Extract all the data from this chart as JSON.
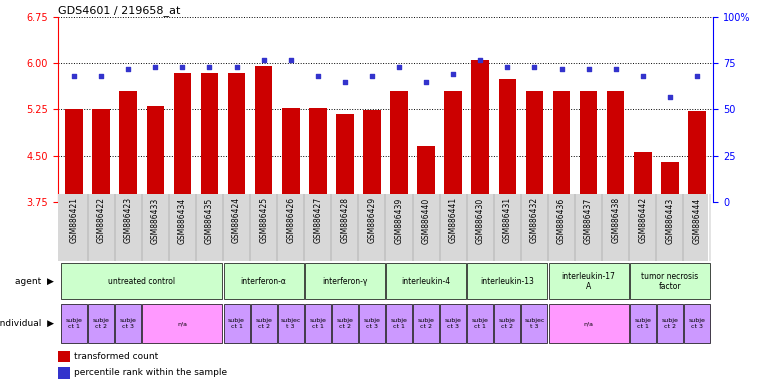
{
  "title": "GDS4601 / 219658_at",
  "samples": [
    "GSM886421",
    "GSM886422",
    "GSM886423",
    "GSM886433",
    "GSM886434",
    "GSM886435",
    "GSM886424",
    "GSM886425",
    "GSM886426",
    "GSM886427",
    "GSM886428",
    "GSM886429",
    "GSM886439",
    "GSM886440",
    "GSM886441",
    "GSM886430",
    "GSM886431",
    "GSM886432",
    "GSM886436",
    "GSM886437",
    "GSM886438",
    "GSM886442",
    "GSM886443",
    "GSM886444"
  ],
  "bar_values": [
    5.25,
    5.25,
    5.55,
    5.3,
    5.85,
    5.85,
    5.85,
    5.95,
    5.27,
    5.27,
    5.18,
    5.24,
    5.55,
    4.65,
    5.55,
    6.05,
    5.75,
    5.55,
    5.55,
    5.55,
    5.55,
    4.55,
    4.4,
    5.22
  ],
  "dot_values": [
    68,
    68,
    72,
    73,
    73,
    73,
    73,
    77,
    77,
    68,
    65,
    68,
    73,
    65,
    69,
    77,
    73,
    73,
    72,
    72,
    72,
    68,
    57,
    68
  ],
  "ylim_left": [
    3.75,
    6.75
  ],
  "ylim_right": [
    0,
    100
  ],
  "yticks_left": [
    3.75,
    4.5,
    5.25,
    6.0,
    6.75
  ],
  "yticks_right": [
    0,
    25,
    50,
    75,
    100
  ],
  "bar_color": "#cc0000",
  "dot_color": "#3333cc",
  "bar_width": 0.65,
  "agent_groups": [
    {
      "label": "untreated control",
      "start": 0,
      "end": 5,
      "color": "#ccffcc"
    },
    {
      "label": "interferon-α",
      "start": 6,
      "end": 8,
      "color": "#ccffcc"
    },
    {
      "label": "interferon-γ",
      "start": 9,
      "end": 11,
      "color": "#ccffcc"
    },
    {
      "label": "interleukin-4",
      "start": 12,
      "end": 14,
      "color": "#ccffcc"
    },
    {
      "label": "interleukin-13",
      "start": 15,
      "end": 17,
      "color": "#ccffcc"
    },
    {
      "label": "interleukin-17\nA",
      "start": 18,
      "end": 20,
      "color": "#ccffcc"
    },
    {
      "label": "tumor necrosis\nfactor",
      "start": 21,
      "end": 23,
      "color": "#ccffcc"
    }
  ],
  "individual_groups": [
    {
      "label": "subje\nct 1",
      "start": 0,
      "end": 0,
      "color": "#cc99ff"
    },
    {
      "label": "subje\nct 2",
      "start": 1,
      "end": 1,
      "color": "#cc99ff"
    },
    {
      "label": "subje\nct 3",
      "start": 2,
      "end": 2,
      "color": "#cc99ff"
    },
    {
      "label": "n/a",
      "start": 3,
      "end": 5,
      "color": "#ff99ff"
    },
    {
      "label": "subje\nct 1",
      "start": 6,
      "end": 6,
      "color": "#cc99ff"
    },
    {
      "label": "subje\nct 2",
      "start": 7,
      "end": 7,
      "color": "#cc99ff"
    },
    {
      "label": "subjec\nt 3",
      "start": 8,
      "end": 8,
      "color": "#cc99ff"
    },
    {
      "label": "subje\nct 1",
      "start": 9,
      "end": 9,
      "color": "#cc99ff"
    },
    {
      "label": "subje\nct 2",
      "start": 10,
      "end": 10,
      "color": "#cc99ff"
    },
    {
      "label": "subje\nct 3",
      "start": 11,
      "end": 11,
      "color": "#cc99ff"
    },
    {
      "label": "subje\nct 1",
      "start": 12,
      "end": 12,
      "color": "#cc99ff"
    },
    {
      "label": "subje\nct 2",
      "start": 13,
      "end": 13,
      "color": "#cc99ff"
    },
    {
      "label": "subje\nct 3",
      "start": 14,
      "end": 14,
      "color": "#cc99ff"
    },
    {
      "label": "subje\nct 1",
      "start": 15,
      "end": 15,
      "color": "#cc99ff"
    },
    {
      "label": "subje\nct 2",
      "start": 16,
      "end": 16,
      "color": "#cc99ff"
    },
    {
      "label": "subjec\nt 3",
      "start": 17,
      "end": 17,
      "color": "#cc99ff"
    },
    {
      "label": "n/a",
      "start": 18,
      "end": 20,
      "color": "#ff99ff"
    },
    {
      "label": "subje\nct 1",
      "start": 21,
      "end": 21,
      "color": "#cc99ff"
    },
    {
      "label": "subje\nct 2",
      "start": 22,
      "end": 22,
      "color": "#cc99ff"
    },
    {
      "label": "subje\nct 3",
      "start": 23,
      "end": 23,
      "color": "#cc99ff"
    }
  ]
}
